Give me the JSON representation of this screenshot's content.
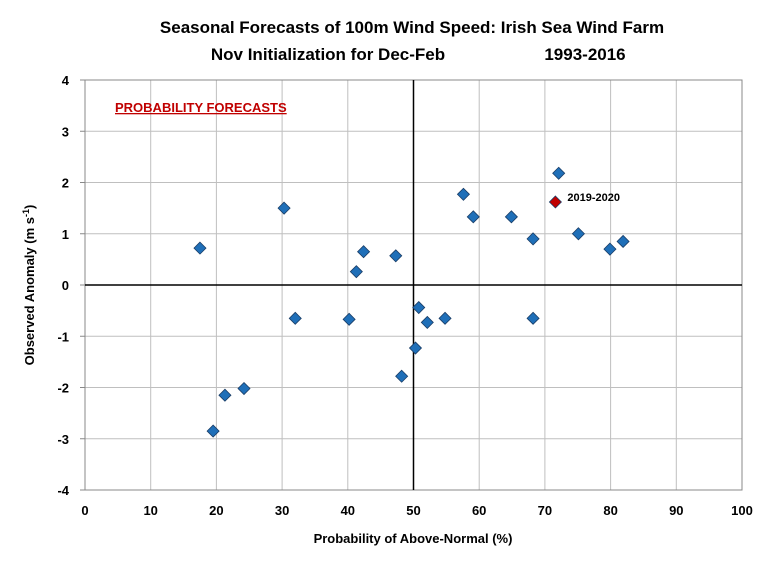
{
  "chart_data": {
    "type": "scatter",
    "title": [
      "Seasonal Forecasts of 100m Wind Speed: Irish Sea Wind Farm",
      "Nov Initialization for Dec-Feb",
      "1993-2016"
    ],
    "annotation": "PROBABILITY FORECASTS",
    "xlabel": "Probability of Above-Normal (%)",
    "ylabel": "Observed Anomaly (m s",
    "ylabel_sup": "-1",
    "ylabel_end": ")",
    "xlim": [
      0,
      100
    ],
    "ylim": [
      -4,
      4
    ],
    "xticks": [
      0,
      10,
      20,
      30,
      40,
      50,
      60,
      70,
      80,
      90,
      100
    ],
    "yticks": [
      -4,
      -3,
      -2,
      -1,
      0,
      1,
      2,
      3,
      4
    ],
    "grid": true,
    "colors": {
      "points": "#1f6fb8",
      "highlight": "#c00000",
      "annotation": "#c00000"
    },
    "points": [
      [
        17.5,
        0.72
      ],
      [
        19.5,
        -2.85
      ],
      [
        21.3,
        -2.15
      ],
      [
        24.2,
        -2.02
      ],
      [
        30.3,
        1.5
      ],
      [
        32.0,
        -0.65
      ],
      [
        40.2,
        -0.67
      ],
      [
        41.3,
        0.26
      ],
      [
        42.4,
        0.65
      ],
      [
        47.3,
        0.57
      ],
      [
        48.2,
        -1.78
      ],
      [
        50.3,
        -1.23
      ],
      [
        50.8,
        -0.44
      ],
      [
        52.1,
        -0.73
      ],
      [
        54.8,
        -0.65
      ],
      [
        57.6,
        1.77
      ],
      [
        59.1,
        1.33
      ],
      [
        64.9,
        1.33
      ],
      [
        68.2,
        0.9
      ],
      [
        68.2,
        -0.65
      ],
      [
        72.1,
        2.18
      ],
      [
        75.1,
        1.0
      ],
      [
        79.9,
        0.7
      ],
      [
        81.9,
        0.85
      ]
    ],
    "highlight": {
      "label": "2019-2020",
      "x": 71.6,
      "y": 1.62
    }
  }
}
